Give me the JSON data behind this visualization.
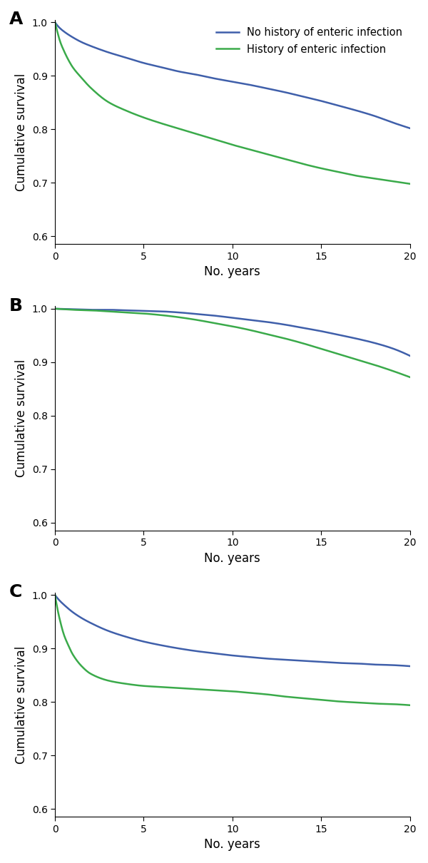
{
  "panels": [
    "A",
    "B",
    "C"
  ],
  "blue_color": "#3f5faa",
  "green_color": "#3aaa4a",
  "legend_labels": [
    "No history of enteric infection",
    "History of enteric infection"
  ],
  "xlabel": "No. years",
  "ylabel": "Cumulative survival",
  "xlim": [
    0,
    20
  ],
  "ylim": [
    0.585,
    1.005
  ],
  "yticks": [
    0.6,
    0.7,
    0.8,
    0.9,
    1.0
  ],
  "xticks": [
    0,
    5,
    10,
    15,
    20
  ],
  "panel_A": {
    "blue_x": [
      0,
      0.25,
      0.5,
      1,
      1.5,
      2,
      3,
      4,
      5,
      6,
      7,
      8,
      9,
      10,
      11,
      12,
      13,
      14,
      15,
      16,
      17,
      18,
      19,
      20
    ],
    "blue_y": [
      1.0,
      0.99,
      0.983,
      0.972,
      0.963,
      0.956,
      0.944,
      0.934,
      0.924,
      0.916,
      0.908,
      0.902,
      0.895,
      0.889,
      0.883,
      0.876,
      0.869,
      0.861,
      0.853,
      0.844,
      0.835,
      0.825,
      0.813,
      0.802
    ],
    "green_x": [
      0,
      0.15,
      0.3,
      0.5,
      0.75,
      1,
      1.5,
      2,
      3,
      4,
      5,
      6,
      7,
      8,
      9,
      10,
      11,
      12,
      13,
      14,
      15,
      16,
      17,
      18,
      19,
      20
    ],
    "green_y": [
      1.0,
      0.98,
      0.963,
      0.947,
      0.93,
      0.916,
      0.896,
      0.878,
      0.851,
      0.835,
      0.822,
      0.811,
      0.801,
      0.791,
      0.781,
      0.771,
      0.762,
      0.753,
      0.744,
      0.735,
      0.727,
      0.72,
      0.713,
      0.708,
      0.703,
      0.698
    ]
  },
  "panel_B": {
    "blue_x": [
      0,
      0.5,
      1,
      2,
      3,
      4,
      5,
      6,
      7,
      8,
      9,
      10,
      11,
      12,
      13,
      14,
      15,
      16,
      17,
      18,
      19,
      20
    ],
    "blue_y": [
      1.0,
      0.9995,
      0.999,
      0.998,
      0.998,
      0.997,
      0.996,
      0.995,
      0.993,
      0.99,
      0.987,
      0.983,
      0.979,
      0.975,
      0.97,
      0.964,
      0.958,
      0.951,
      0.944,
      0.936,
      0.926,
      0.912
    ],
    "green_x": [
      0,
      0.5,
      1,
      2,
      3,
      4,
      5,
      6,
      7,
      8,
      9,
      10,
      11,
      12,
      13,
      14,
      15,
      16,
      17,
      18,
      19,
      20
    ],
    "green_y": [
      1.0,
      0.999,
      0.998,
      0.997,
      0.995,
      0.993,
      0.991,
      0.988,
      0.984,
      0.979,
      0.973,
      0.967,
      0.96,
      0.952,
      0.944,
      0.935,
      0.925,
      0.915,
      0.905,
      0.895,
      0.884,
      0.872
    ]
  },
  "panel_C": {
    "blue_x": [
      0,
      0.25,
      0.5,
      1,
      1.5,
      2,
      3,
      4,
      5,
      6,
      7,
      8,
      9,
      10,
      11,
      12,
      13,
      14,
      15,
      16,
      17,
      18,
      19,
      20
    ],
    "blue_y": [
      1.0,
      0.99,
      0.982,
      0.968,
      0.957,
      0.948,
      0.933,
      0.922,
      0.913,
      0.906,
      0.9,
      0.895,
      0.891,
      0.887,
      0.884,
      0.881,
      0.879,
      0.877,
      0.875,
      0.873,
      0.872,
      0.87,
      0.869,
      0.867
    ],
    "green_x": [
      0,
      0.15,
      0.3,
      0.5,
      0.75,
      1,
      1.5,
      2,
      3,
      4,
      5,
      6,
      7,
      8,
      9,
      10,
      11,
      12,
      13,
      14,
      15,
      16,
      17,
      18,
      19,
      20
    ],
    "green_y": [
      1.0,
      0.972,
      0.95,
      0.926,
      0.906,
      0.889,
      0.867,
      0.853,
      0.84,
      0.834,
      0.83,
      0.828,
      0.826,
      0.824,
      0.822,
      0.82,
      0.817,
      0.814,
      0.81,
      0.807,
      0.804,
      0.801,
      0.799,
      0.797,
      0.796,
      0.794
    ]
  },
  "line_width": 1.8,
  "label_fontsize": 12,
  "tick_fontsize": 10,
  "panel_label_fontsize": 18,
  "legend_fontsize": 10.5
}
